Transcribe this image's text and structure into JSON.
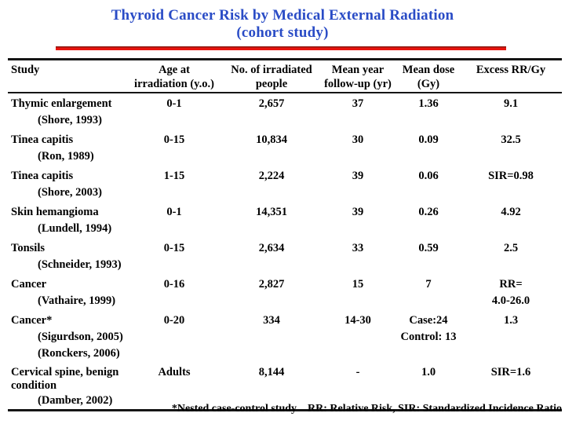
{
  "title": {
    "line1": "Thyroid Cancer Risk by Medical External Radiation",
    "line2": "(cohort study)"
  },
  "colors": {
    "title_blue": "#2A4CC6",
    "underline_red": "#E8130D",
    "underline_red_dark": "#8A1A12",
    "rule_black": "#151515"
  },
  "table": {
    "headers": [
      {
        "lines": [
          "Study"
        ]
      },
      {
        "lines": [
          "Age at",
          "irradiation (y.o.)"
        ]
      },
      {
        "lines": [
          "No. of irradiated",
          "people"
        ]
      },
      {
        "lines": [
          "Mean year",
          "follow-up (yr)"
        ]
      },
      {
        "lines": [
          "Mean dose",
          "(Gy)"
        ]
      },
      {
        "lines": [
          "Excess RR/Gy"
        ]
      }
    ],
    "rows": [
      {
        "study": [
          "Thymic enlargement",
          "(Shore, 1993)"
        ],
        "age": [
          "0-1"
        ],
        "people": [
          "2,657"
        ],
        "follow_up": [
          "37"
        ],
        "dose": [
          "1.36"
        ],
        "excess_rr": [
          "9.1"
        ]
      },
      {
        "study": [
          "Tinea capitis",
          "(Ron, 1989)"
        ],
        "age": [
          "0-15"
        ],
        "people": [
          "10,834"
        ],
        "follow_up": [
          "30"
        ],
        "dose": [
          "0.09"
        ],
        "excess_rr": [
          "32.5"
        ]
      },
      {
        "study": [
          "Tinea capitis",
          "(Shore, 2003)"
        ],
        "age": [
          "1-15"
        ],
        "people": [
          "2,224"
        ],
        "follow_up": [
          "39"
        ],
        "dose": [
          "0.06"
        ],
        "excess_rr": [
          "SIR=0.98"
        ]
      },
      {
        "study": [
          "Skin hemangioma",
          "(Lundell, 1994)"
        ],
        "age": [
          "0-1"
        ],
        "people": [
          "14,351"
        ],
        "follow_up": [
          "39"
        ],
        "dose": [
          "0.26"
        ],
        "excess_rr": [
          "4.92"
        ]
      },
      {
        "study": [
          "Tonsils",
          "(Schneider, 1993)"
        ],
        "age": [
          "0-15"
        ],
        "people": [
          "2,634"
        ],
        "follow_up": [
          "33"
        ],
        "dose": [
          "0.59"
        ],
        "excess_rr": [
          "2.5"
        ]
      },
      {
        "study": [
          "Cancer",
          "(Vathaire, 1999)"
        ],
        "age": [
          "0-16"
        ],
        "people": [
          "2,827"
        ],
        "follow_up": [
          "15"
        ],
        "dose": [
          "7"
        ],
        "excess_rr": [
          "RR=",
          "4.0-26.0"
        ]
      },
      {
        "study": [
          "Cancer*",
          "(Sigurdson, 2005)",
          "(Ronckers, 2006)"
        ],
        "age": [
          "0-20"
        ],
        "people": [
          "334"
        ],
        "follow_up": [
          "14-30"
        ],
        "dose": [
          "Case:24",
          "Control: 13"
        ],
        "excess_rr": [
          "1.3"
        ]
      },
      {
        "study": [
          "Cervical spine, benign",
          "condition",
          "(Damber, 2002)"
        ],
        "age": [
          "Adults"
        ],
        "people": [
          "8,144"
        ],
        "follow_up": [
          "-"
        ],
        "dose": [
          "1.0"
        ],
        "excess_rr": [
          "SIR=1.6"
        ]
      }
    ]
  },
  "footnote": {
    "note": "*Nested case-control study",
    "abbreviations": "RR: Relative Risk, SIR: Standardized Incidence Ratio"
  }
}
